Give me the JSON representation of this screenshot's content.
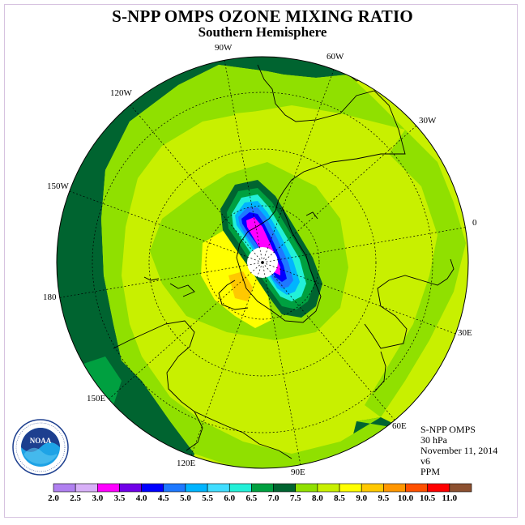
{
  "title": "S-NPP OMPS OZONE MIXING RATIO",
  "subtitle": "Southern Hemisphere",
  "meta": {
    "instrument": "S-NPP OMPS",
    "level": "30 hPa",
    "date": "November 11, 2014",
    "version": "v6",
    "units": "PPM"
  },
  "map": {
    "projection": "south-polar-stereographic",
    "longitude_labels": [
      "90W",
      "60W",
      "30W",
      "0",
      "30E",
      "60E",
      "90E",
      "120E",
      "150E",
      "180",
      "150W",
      "120W"
    ],
    "pole_marker": "no-data-circle"
  },
  "colorbar": {
    "ticks": [
      "2.0",
      "2.5",
      "3.0",
      "3.5",
      "4.0",
      "4.5",
      "5.0",
      "5.5",
      "6.0",
      "6.5",
      "7.0",
      "7.5",
      "8.0",
      "8.5",
      "9.0",
      "9.5",
      "10.0",
      "10.5",
      "11.0"
    ],
    "colors": [
      "#b080f0",
      "#d8b0f8",
      "#ff00ff",
      "#7000e8",
      "#0000ff",
      "#1e78ff",
      "#00b4ff",
      "#40ddff",
      "#22f0d8",
      "#00a040",
      "#006430",
      "#90e000",
      "#c8f000",
      "#ffff00",
      "#ffc800",
      "#ff9600",
      "#ff5000",
      "#ff0000",
      "#8c5030"
    ]
  },
  "logo": {
    "name": "noaa-logo",
    "text": "NOAA"
  }
}
